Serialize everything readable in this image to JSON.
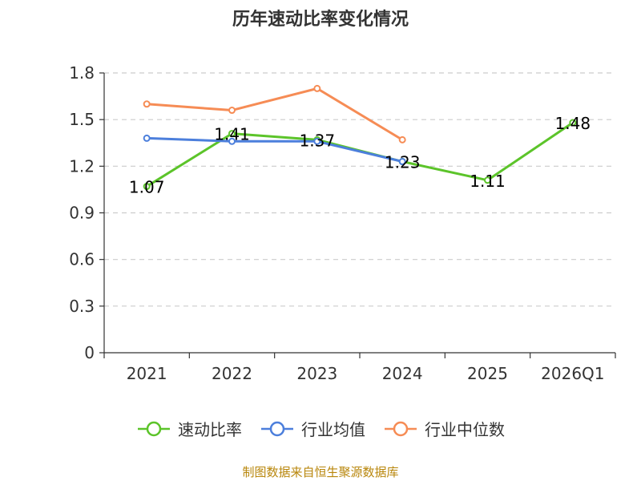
{
  "chart_data": {
    "type": "line",
    "title": "历年速动比率变化情况",
    "categories": [
      "2021",
      "2022",
      "2023",
      "2024",
      "2025",
      "2026Q1"
    ],
    "ylim": [
      0,
      1.8
    ],
    "yticks": [
      "0",
      "0.3",
      "0.6",
      "0.9",
      "1.2",
      "1.5",
      "1.8"
    ],
    "grid": true,
    "legend_position": "bottom",
    "series": [
      {
        "name": "速动比率",
        "color": "#5cc42a",
        "values": [
          1.07,
          1.41,
          1.37,
          1.23,
          1.11,
          1.48
        ],
        "labels": [
          "1.07",
          "1.41",
          "1.37",
          "1.23",
          "1.11",
          "1.48"
        ]
      },
      {
        "name": "行业均值",
        "color": "#4c7fdc",
        "values": [
          1.38,
          1.36,
          1.36,
          1.23,
          null,
          null
        ]
      },
      {
        "name": "行业中位数",
        "color": "#f68c55",
        "values": [
          1.6,
          1.56,
          1.7,
          1.37,
          null,
          null
        ]
      }
    ]
  },
  "source": "制图数据来自恒生聚源数据库"
}
